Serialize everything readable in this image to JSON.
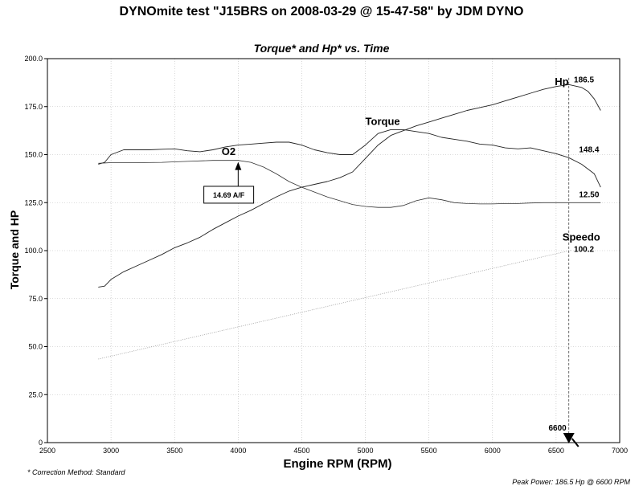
{
  "chart_data": {
    "type": "line",
    "title": "DYNOmite test \"J15BRS on 2008-03-29 @ 15-47-58\" by JDM DYNO",
    "subtitle": "Torque* and Hp* vs. Time",
    "xlabel": "Engine RPM (RPM)",
    "ylabel": "Torque and HP",
    "xlim": [
      2500,
      7000
    ],
    "ylim": [
      0,
      200
    ],
    "x_ticks": [
      2500,
      3000,
      3500,
      4000,
      4500,
      5000,
      5500,
      6000,
      6500,
      7000
    ],
    "y_ticks": [
      "0",
      "25.0",
      "50.0",
      "75.0",
      "100.0",
      "125.0",
      "150.0",
      "175.0",
      "200.0"
    ],
    "grid": true,
    "series": [
      {
        "name": "Hp",
        "x": [
          2900,
          2950,
          3000,
          3100,
          3200,
          3300,
          3400,
          3500,
          3600,
          3700,
          3800,
          3900,
          4000,
          4100,
          4200,
          4300,
          4400,
          4500,
          4600,
          4700,
          4800,
          4900,
          5000,
          5100,
          5200,
          5300,
          5400,
          5500,
          5600,
          5700,
          5800,
          5900,
          6000,
          6100,
          6200,
          6300,
          6400,
          6500,
          6600,
          6700,
          6750,
          6800,
          6850
        ],
        "y": [
          81,
          81.5,
          85,
          89,
          92,
          95,
          98,
          101.5,
          104,
          107,
          111,
          114.5,
          118,
          121,
          124.5,
          128,
          131,
          133,
          134.5,
          136,
          138,
          141,
          148,
          155,
          160,
          162.5,
          165,
          167,
          169,
          171,
          173,
          174.5,
          176,
          178,
          180,
          182,
          184,
          185.5,
          186.5,
          185,
          183,
          179,
          173
        ]
      },
      {
        "name": "Torque",
        "x": [
          2900,
          2950,
          3000,
          3100,
          3200,
          3300,
          3400,
          3500,
          3600,
          3700,
          3800,
          3900,
          4000,
          4100,
          4200,
          4300,
          4400,
          4500,
          4600,
          4700,
          4800,
          4900,
          5000,
          5100,
          5200,
          5300,
          5400,
          5500,
          5600,
          5700,
          5800,
          5900,
          6000,
          6100,
          6200,
          6300,
          6400,
          6500,
          6600,
          6700,
          6800,
          6850
        ],
        "y": [
          145,
          146,
          150,
          152.5,
          152.5,
          152.5,
          152.8,
          153,
          152,
          151.5,
          152.5,
          154,
          155,
          155.5,
          156,
          156.5,
          156.5,
          155,
          152.5,
          151,
          150,
          150,
          155,
          161,
          163,
          163,
          162,
          161,
          159,
          158,
          157,
          155.5,
          155,
          153.5,
          153,
          153.5,
          152,
          150.5,
          148.4,
          145,
          140,
          133
        ]
      },
      {
        "name": "O2",
        "x": [
          2900,
          3000,
          3200,
          3400,
          3600,
          3800,
          4000,
          4100,
          4200,
          4300,
          4400,
          4500,
          4600,
          4700,
          4800,
          4900,
          5000,
          5100,
          5200,
          5300,
          5400,
          5500,
          5600,
          5700,
          5800,
          5900,
          6000,
          6100,
          6200,
          6300,
          6400,
          6500,
          6600,
          6700,
          6850
        ],
        "y": [
          145.5,
          145.8,
          145.8,
          146,
          146.5,
          147,
          147,
          146,
          143.5,
          140,
          136,
          133,
          130.5,
          128,
          126,
          124,
          123,
          122.5,
          122.5,
          123.5,
          126,
          127.5,
          126.5,
          125,
          124.5,
          124.3,
          124.3,
          124.5,
          124.5,
          124.8,
          125,
          125,
          125,
          125,
          125
        ]
      },
      {
        "name": "Speedo",
        "x": [
          2900,
          6620
        ],
        "y": [
          43.5,
          100.2
        ]
      }
    ],
    "annotations": {
      "hp_peak": "186.5",
      "torque_at_marker": "148.4",
      "o2_at_marker": "12.50",
      "speedo_at_marker": "100.2",
      "o2_callout": "14.69 A/F",
      "marker_rpm": "6600",
      "hp_label": "Hp",
      "torque_label": "Torque",
      "o2_label": "O2",
      "speedo_label": "Speedo"
    },
    "marker_x": 6600,
    "callout_x": 4000,
    "callout_y": 147,
    "footnote": "* Correction Method: Standard",
    "peak_text": "Peak Power: 186.5 Hp @ 6600 RPM"
  }
}
